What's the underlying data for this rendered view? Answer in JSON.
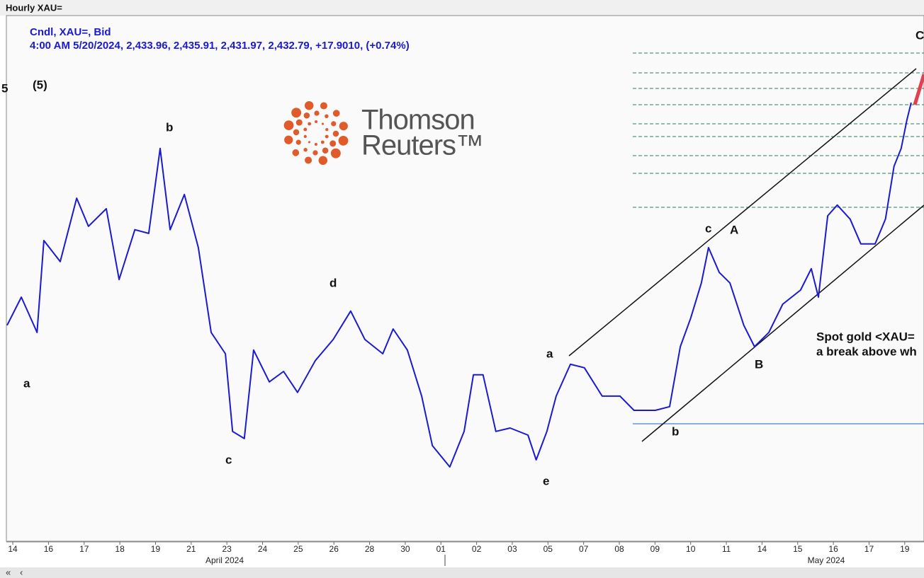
{
  "window_title": "Hourly XAU=",
  "legend_line1": "Cndl, XAU=, Bid",
  "legend_line2": "4:00 AM 5/20/2024, 2,433.96, 2,435.91, 2,431.97, 2,432.79, +17.9010, (+0.74%)",
  "logo": {
    "line1": "Thomson",
    "line2": "Reuters™"
  },
  "annotations": [
    "5",
    "(5)",
    "a",
    "b",
    "c",
    "d",
    "e",
    "a",
    "b",
    "c",
    "A",
    "B",
    "C"
  ],
  "note": [
    "Spot gold <XAU=",
    "a break above wh"
  ],
  "months": [
    "April 2024",
    "May 2024"
  ],
  "scroll_buttons": [
    "«",
    "‹"
  ],
  "chart_data": {
    "type": "line",
    "color": "#1a1ad0",
    "xlim": [
      -0.16,
      25.54
    ],
    "ylim": [
      2255.3,
      2469.8
    ],
    "xticks": [
      {
        "value": 0,
        "label": "14"
      },
      {
        "value": 1,
        "label": "16"
      },
      {
        "value": 2,
        "label": "17"
      },
      {
        "value": 3,
        "label": "18"
      },
      {
        "value": 4,
        "label": "19"
      },
      {
        "value": 5,
        "label": "21"
      },
      {
        "value": 6,
        "label": "23"
      },
      {
        "value": 7,
        "label": "24"
      },
      {
        "value": 8,
        "label": "25"
      },
      {
        "value": 9,
        "label": "26"
      },
      {
        "value": 10,
        "label": "28"
      },
      {
        "value": 11,
        "label": "30"
      },
      {
        "value": 12,
        "label": "01"
      },
      {
        "value": 13,
        "label": "02"
      },
      {
        "value": 14,
        "label": "03"
      },
      {
        "value": 15,
        "label": "05"
      },
      {
        "value": 16,
        "label": "07"
      },
      {
        "value": 17,
        "label": "08"
      },
      {
        "value": 18,
        "label": "09"
      },
      {
        "value": 19,
        "label": "10"
      },
      {
        "value": 20,
        "label": "11"
      },
      {
        "value": 21,
        "label": "14"
      },
      {
        "value": 22,
        "label": "15"
      },
      {
        "value": 23,
        "label": "16"
      },
      {
        "value": 24,
        "label": "17"
      },
      {
        "value": 25,
        "label": "19"
      }
    ],
    "series": [
      {
        "name": "XAU=",
        "x": [
          -0.16,
          0.24,
          0.68,
          0.87,
          1.33,
          1.79,
          2.12,
          2.62,
          2.98,
          3.42,
          3.81,
          4.13,
          4.41,
          4.81,
          5.2,
          5.56,
          5.96,
          6.16,
          6.49,
          6.75,
          7.19,
          7.59,
          7.98,
          8.48,
          8.98,
          9.47,
          9.87,
          10.37,
          10.66,
          11.06,
          11.46,
          11.76,
          12.25,
          12.65,
          12.91,
          13.18,
          13.54,
          13.94,
          14.44,
          14.67,
          14.97,
          15.23,
          15.63,
          16.02,
          16.52,
          17.02,
          17.41,
          18.01,
          18.41,
          18.71,
          19.0,
          19.3,
          19.5,
          19.8,
          20.1,
          20.49,
          20.79,
          21.19,
          21.58,
          22.08,
          22.38,
          22.58,
          22.84,
          23.11,
          23.47,
          23.77,
          24.17,
          24.46,
          24.7,
          24.9,
          25.06,
          25.18
        ],
        "values": [
          2343.4,
          2354.9,
          2340.5,
          2378.0,
          2369.4,
          2395.3,
          2383.8,
          2391.0,
          2362.1,
          2382.4,
          2380.9,
          2415.6,
          2382.4,
          2396.8,
          2375.1,
          2340.5,
          2331.8,
          2300.1,
          2297.2,
          2333.3,
          2320.3,
          2324.6,
          2316.0,
          2329.0,
          2337.6,
          2349.2,
          2337.6,
          2331.8,
          2341.9,
          2333.3,
          2314.5,
          2294.3,
          2285.6,
          2300.1,
          2323.2,
          2323.2,
          2300.1,
          2301.5,
          2298.6,
          2288.5,
          2300.1,
          2314.5,
          2327.5,
          2326.1,
          2314.5,
          2314.5,
          2308.7,
          2308.7,
          2310.2,
          2334.7,
          2346.3,
          2360.7,
          2375.1,
          2365.0,
          2360.7,
          2343.4,
          2334.7,
          2340.5,
          2352.0,
          2357.8,
          2366.5,
          2354.9,
          2388.1,
          2392.5,
          2386.7,
          2376.6,
          2376.6,
          2386.7,
          2408.3,
          2415.6,
          2427.1,
          2434.3
        ]
      }
    ]
  }
}
